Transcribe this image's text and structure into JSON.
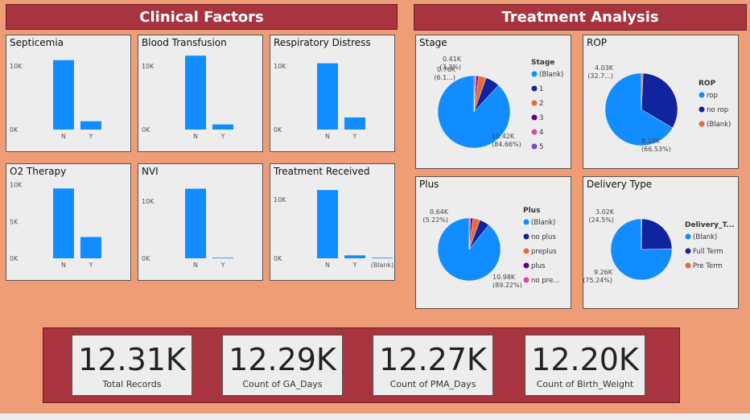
{
  "headers": {
    "clinical": "Clinical Factors",
    "treatment": "Treatment Analysis"
  },
  "colors": {
    "bar": "#118dff",
    "blank": "#118dff",
    "navy": "#12239e",
    "orange": "#e66c37",
    "purple": "#6b007b",
    "pink": "#e044a7",
    "violet": "#744ec2"
  },
  "bar_charts": [
    {
      "id": "septicemia",
      "title": "Septicemia",
      "type": "bar",
      "categories": [
        "N",
        "Y"
      ],
      "values": [
        10.9,
        1.3
      ],
      "ymax": 12,
      "ticks": [
        {
          "v": 10,
          "label": "10K"
        },
        {
          "v": 0,
          "label": "0K"
        }
      ]
    },
    {
      "id": "blood-transfusion",
      "title": "Blood Transfusion",
      "type": "bar",
      "categories": [
        "N",
        "Y"
      ],
      "values": [
        11.6,
        0.8
      ],
      "ymax": 12,
      "ticks": [
        {
          "v": 10,
          "label": "10K"
        },
        {
          "v": 0,
          "label": "0K"
        }
      ]
    },
    {
      "id": "respiratory-distress",
      "title": "Respiratory Distress",
      "type": "bar",
      "categories": [
        "N",
        "Y"
      ],
      "values": [
        10.4,
        1.9
      ],
      "ymax": 12,
      "ticks": [
        {
          "v": 10,
          "label": "10K"
        },
        {
          "v": 0,
          "label": "0K"
        }
      ]
    },
    {
      "id": "o2-therapy",
      "title": "O2 Therapy",
      "type": "bar",
      "categories": [
        "N",
        "Y"
      ],
      "values": [
        9.5,
        2.9
      ],
      "ymax": 10.4,
      "ticks": [
        {
          "v": 10,
          "label": "10K"
        },
        {
          "v": 5,
          "label": "5K"
        },
        {
          "v": 0,
          "label": "0K"
        }
      ]
    },
    {
      "id": "nvi",
      "title": "NVI",
      "type": "bar",
      "categories": [
        "N",
        "Y"
      ],
      "values": [
        12.2,
        0.1
      ],
      "ymax": 13.4,
      "ticks": [
        {
          "v": 10,
          "label": "10K"
        },
        {
          "v": 0,
          "label": "0K"
        }
      ]
    },
    {
      "id": "treatment-received",
      "title": "Treatment Received",
      "type": "bar",
      "categories": [
        "N",
        "Y",
        "(Blank)"
      ],
      "values": [
        11.6,
        0.5,
        0.1
      ],
      "ymax": 13,
      "ticks": [
        {
          "v": 10,
          "label": "10K"
        },
        {
          "v": 0,
          "label": "0K"
        }
      ]
    }
  ],
  "pie_charts": [
    {
      "id": "stage",
      "title": "Stage",
      "type": "pie",
      "legend_title": "Stage",
      "slices": [
        {
          "name": "(Blank)",
          "value": 84.66,
          "color": "#118dff"
        },
        {
          "name": "1",
          "value": 6.1,
          "color": "#12239e"
        },
        {
          "name": "2",
          "value": 3.3,
          "color": "#e66c37"
        },
        {
          "name": "3",
          "value": 0.94,
          "color": "#6b007b"
        },
        {
          "name": "4",
          "value": 0.5,
          "color": "#e044a7"
        },
        {
          "name": "5",
          "value": 0.5,
          "color": "#744ec2"
        }
      ],
      "labels": [
        {
          "text": "10.42K",
          "sub": "(84.66%)"
        },
        {
          "text": "0.76K",
          "sub": "(6.1...)"
        },
        {
          "text": "0.41K",
          "sub": "(3.3%)"
        }
      ]
    },
    {
      "id": "rop",
      "title": "ROP",
      "type": "pie",
      "legend_title": "ROP",
      "slices": [
        {
          "name": "rop",
          "value": 66.53,
          "color": "#118dff"
        },
        {
          "name": "no rop",
          "value": 32.7,
          "color": "#12239e"
        },
        {
          "name": "(Blank)",
          "value": 0.77,
          "color": "#e66c37"
        }
      ],
      "labels": [
        {
          "text": "8.19K",
          "sub": "(66.53%)"
        },
        {
          "text": "4.03K",
          "sub": "(32.7...)"
        }
      ]
    },
    {
      "id": "plus",
      "title": "Plus",
      "type": "pie",
      "legend_title": "Plus",
      "slices": [
        {
          "name": "(Blank)",
          "value": 89.22,
          "color": "#118dff"
        },
        {
          "name": "no plus",
          "value": 5.22,
          "color": "#12239e"
        },
        {
          "name": "preplus",
          "value": 3.6,
          "color": "#e66c37"
        },
        {
          "name": "plus",
          "value": 1.2,
          "color": "#6b007b"
        },
        {
          "name": "no pre...",
          "value": 0.76,
          "color": "#e044a7"
        }
      ],
      "labels": [
        {
          "text": "10.98K",
          "sub": "(89.22%)"
        },
        {
          "text": "0.64K",
          "sub": "(5.22%)"
        }
      ]
    },
    {
      "id": "delivery-type",
      "title": "Delivery Type",
      "type": "pie",
      "legend_title": "Delivery_T...",
      "slices": [
        {
          "name": "(Blank)",
          "value": 75.24,
          "color": "#118dff"
        },
        {
          "name": "Full Term",
          "value": 24.5,
          "color": "#12239e"
        },
        {
          "name": "Pre Term",
          "value": 0.26,
          "color": "#e66c37"
        }
      ],
      "labels": [
        {
          "text": "9.26K",
          "sub": "(75.24%)"
        },
        {
          "text": "3.02K",
          "sub": "(24.5%)"
        }
      ]
    }
  ],
  "kpis": [
    {
      "value": "12.31K",
      "label": "Total Records"
    },
    {
      "value": "12.29K",
      "label": "Count of GA_Days"
    },
    {
      "value": "12.27K",
      "label": "Count of PMA_Days"
    },
    {
      "value": "12.20K",
      "label": "Count of Birth_Weight"
    }
  ]
}
